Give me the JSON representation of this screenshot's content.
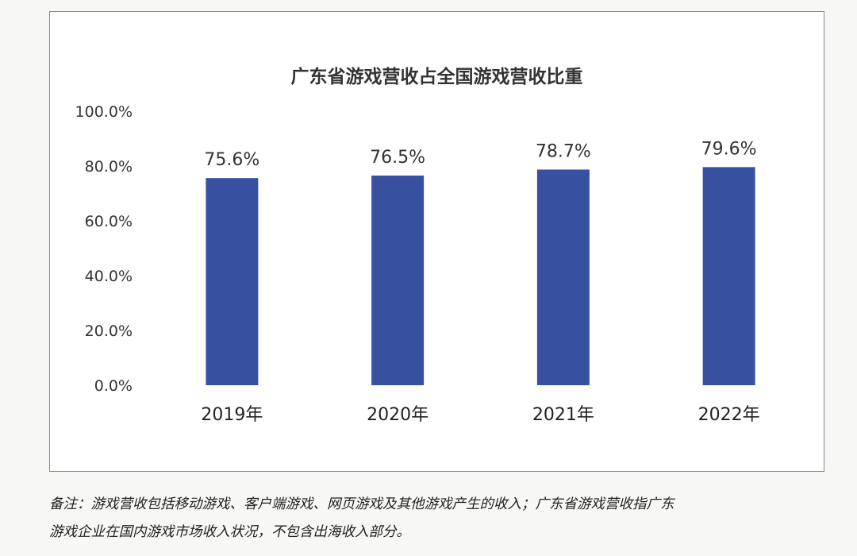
{
  "chart_data": {
    "type": "bar",
    "title": "广东省游戏营收占全国游戏营收比重",
    "categories": [
      "2019年",
      "2020年",
      "2021年",
      "2022年"
    ],
    "values": [
      75.6,
      76.5,
      78.7,
      79.6
    ],
    "data_labels": [
      "75.6%",
      "76.5%",
      "78.7%",
      "79.6%"
    ],
    "y_ticks": [
      "0.0%",
      "20.0%",
      "40.0%",
      "60.0%",
      "80.0%",
      "100.0%"
    ],
    "ylim": [
      0,
      100
    ],
    "xlabel": "",
    "ylabel": "",
    "grid": false,
    "bar_color": "#3850a0"
  },
  "note": {
    "line1": "备注：游戏营收包括移动游戏、客户端游戏、网页游戏及其他游戏产生的收入；广东省游戏营收指广东",
    "line2": "游戏企业在国内游戏市场收入状况，不包含出海收入部分。"
  }
}
